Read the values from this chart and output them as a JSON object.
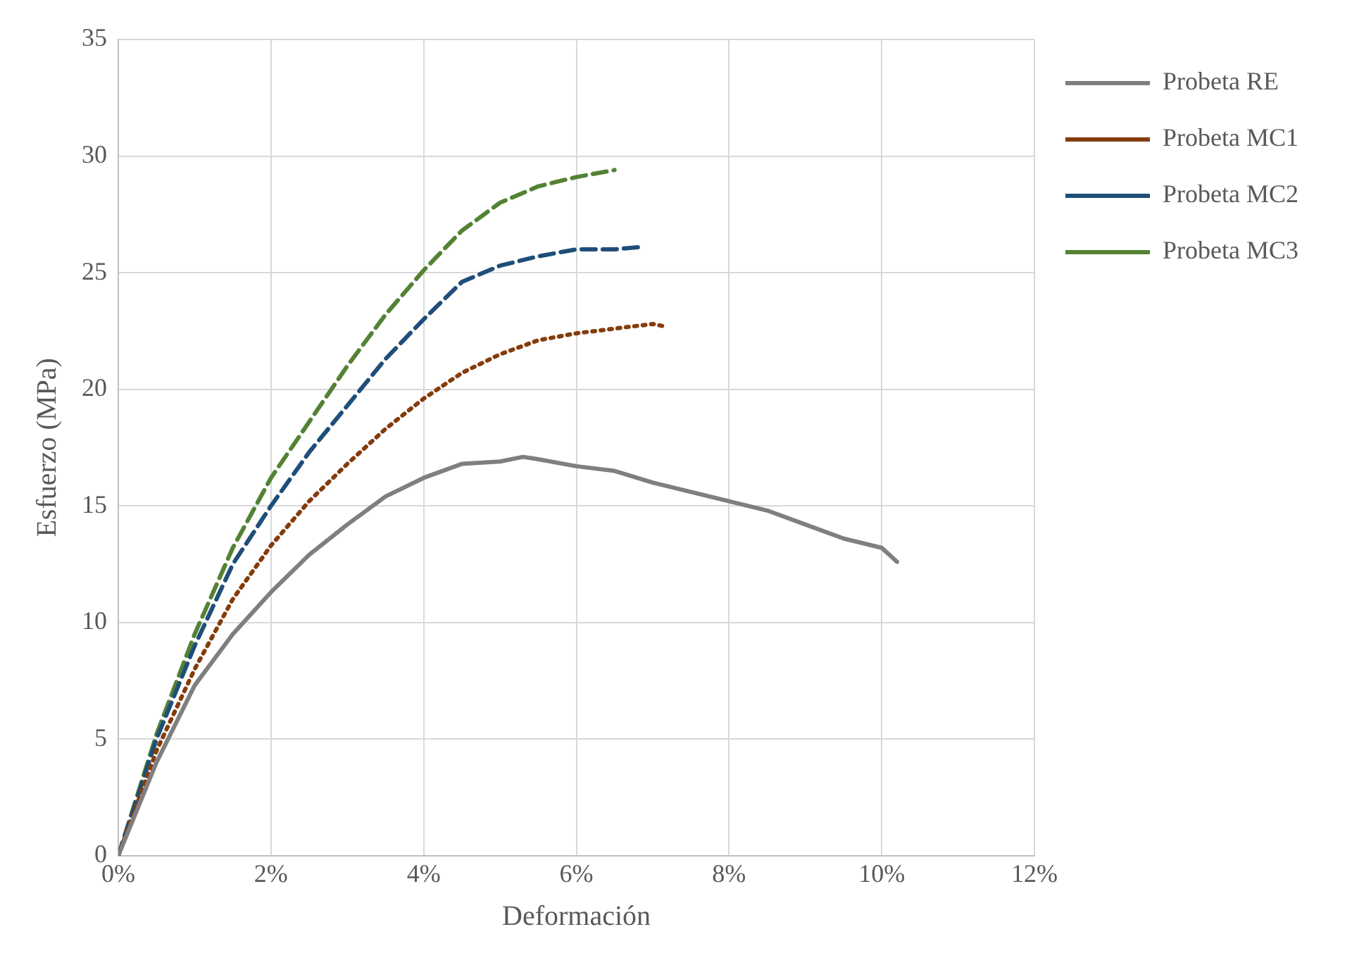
{
  "chart_data": {
    "type": "line",
    "xlabel": "Deformación",
    "ylabel": "Esfuerzo (MPa)",
    "xlim": [
      0,
      12
    ],
    "xticks": [
      {
        "value": 0,
        "label": "0%"
      },
      {
        "value": 2,
        "label": "2%"
      },
      {
        "value": 4,
        "label": "4%"
      },
      {
        "value": 6,
        "label": "6%"
      },
      {
        "value": 8,
        "label": "8%"
      },
      {
        "value": 10,
        "label": "10%"
      },
      {
        "value": 12,
        "label": "12%"
      }
    ],
    "ylim": [
      0,
      35
    ],
    "yticks": [
      0,
      5,
      10,
      15,
      20,
      25,
      30,
      35
    ],
    "grid": true,
    "legend": "top right",
    "marker": "none",
    "series": [
      {
        "name": "Probeta RE",
        "color": "#7f7f7f",
        "line_style": "solid",
        "x": [
          0,
          0.5,
          1,
          1.5,
          2,
          2.5,
          3,
          3.5,
          4,
          4.5,
          5,
          5.3,
          5.5,
          6,
          6.5,
          7,
          7.5,
          8,
          8.5,
          9,
          9.5,
          10,
          10.2
        ],
        "values": [
          0,
          4,
          7.3,
          9.5,
          11.3,
          12.9,
          14.2,
          15.4,
          16.2,
          16.8,
          16.9,
          17.1,
          17,
          16.7,
          16.5,
          16,
          15.6,
          15.2,
          14.8,
          14.2,
          13.6,
          13.2,
          12.6
        ]
      },
      {
        "name": "Probeta MC1",
        "color": "#843c0c",
        "line_style": "dotted",
        "x": [
          0,
          0.5,
          1,
          1.5,
          2,
          2.5,
          3,
          3.5,
          4,
          4.5,
          5,
          5.5,
          6,
          6.5,
          7,
          7.15
        ],
        "values": [
          0,
          4.5,
          8,
          11,
          13.3,
          15.2,
          16.8,
          18.3,
          19.6,
          20.7,
          21.5,
          22.1,
          22.4,
          22.6,
          22.8,
          22.7
        ]
      },
      {
        "name": "Probeta MC2",
        "color": "#1f4e79",
        "line_style": "dashed",
        "x": [
          0,
          0.5,
          1,
          1.5,
          2,
          2.5,
          3,
          3.5,
          4,
          4.5,
          5,
          5.5,
          6,
          6.5,
          6.85
        ],
        "values": [
          0,
          5,
          9,
          12.5,
          15,
          17.3,
          19.3,
          21.3,
          23,
          24.6,
          25.3,
          25.7,
          26,
          26,
          26.1
        ]
      },
      {
        "name": "Probeta MC3",
        "color": "#548235",
        "line_style": "dashed",
        "x": [
          0,
          0.5,
          1,
          1.5,
          2,
          2.5,
          3,
          3.5,
          4,
          4.5,
          5,
          5.5,
          6,
          6.5
        ],
        "values": [
          0,
          5.2,
          9.5,
          13.2,
          16.2,
          18.6,
          21,
          23.2,
          25.1,
          26.8,
          28,
          28.7,
          29.1,
          29.4
        ]
      }
    ]
  }
}
